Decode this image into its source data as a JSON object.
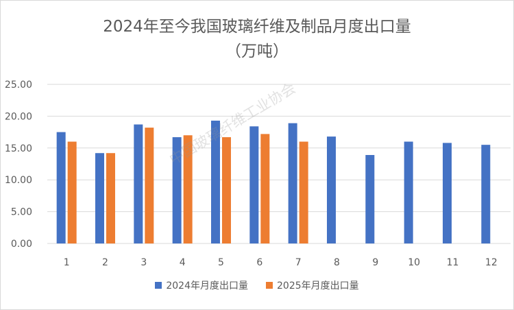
{
  "chart_data": {
    "type": "bar",
    "title": "2024年至今我国玻璃纤维及制品月度出口量",
    "subtitle": "（万吨）",
    "categories": [
      "1",
      "2",
      "3",
      "4",
      "5",
      "6",
      "7",
      "8",
      "9",
      "10",
      "11",
      "12"
    ],
    "series": [
      {
        "name": "2024年月度出口量",
        "color": "#4472c4",
        "values": [
          17.5,
          14.2,
          18.7,
          16.7,
          19.3,
          18.4,
          18.9,
          16.8,
          13.9,
          16.0,
          15.8,
          15.5
        ]
      },
      {
        "name": "2025年月度出口量",
        "color": "#ed7d31",
        "values": [
          16.0,
          14.2,
          18.2,
          17.0,
          16.7,
          17.2,
          16.0,
          null,
          null,
          null,
          null,
          null
        ]
      }
    ],
    "yticks": [
      "0.00",
      "5.00",
      "10.00",
      "15.00",
      "20.00",
      "25.00"
    ],
    "ylim": [
      0,
      25
    ],
    "grid": true,
    "legend": "bottom"
  },
  "watermark": "中国玻璃纤维工业协会"
}
